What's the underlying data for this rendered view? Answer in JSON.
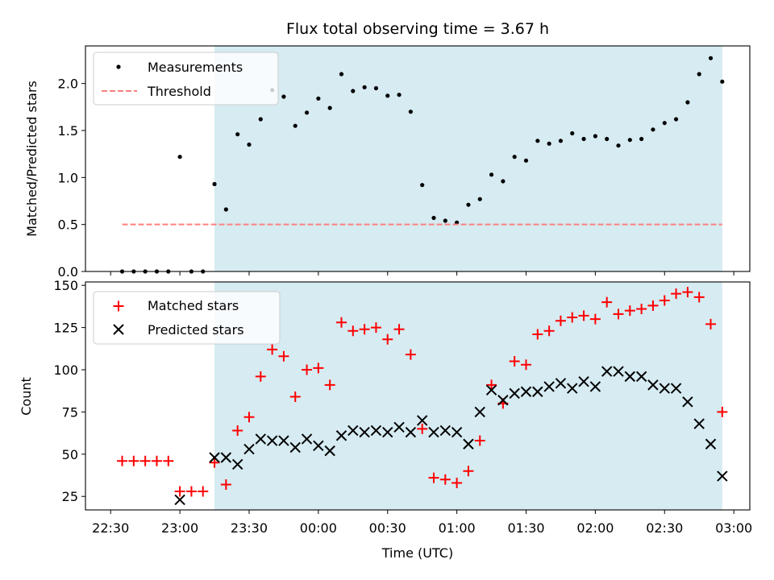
{
  "chart_data": {
    "type": "scatter",
    "title": "Flux total observing time = 3.67 h",
    "xlabel": "Time (UTC)",
    "x_ticks": [
      "22:30",
      "23:00",
      "23:30",
      "00:00",
      "00:30",
      "01:00",
      "01:30",
      "02:00",
      "02:30",
      "03:00"
    ],
    "shaded_interval": [
      "23:15",
      "02:55"
    ],
    "shade_color": "#add8e6",
    "panels": [
      {
        "ylabel": "Matched/Predicted stars",
        "ylim": [
          0,
          2.4
        ],
        "y_ticks": [
          "0.0",
          "0.5",
          "1.0",
          "1.5",
          "2.0"
        ],
        "legend_position": "top-left",
        "series": [
          {
            "name": "Measurements",
            "marker": "dot",
            "color": "#000000",
            "x": [
              "22:35",
              "22:40",
              "22:45",
              "22:50",
              "22:55",
              "23:00",
              "23:05",
              "23:10",
              "23:15",
              "23:20",
              "23:25",
              "23:30",
              "23:35",
              "23:40",
              "23:45",
              "23:50",
              "23:55",
              "00:00",
              "00:05",
              "00:10",
              "00:15",
              "00:20",
              "00:25",
              "00:30",
              "00:35",
              "00:40",
              "00:45",
              "00:50",
              "00:55",
              "01:00",
              "01:05",
              "01:10",
              "01:15",
              "01:20",
              "01:25",
              "01:30",
              "01:35",
              "01:40",
              "01:45",
              "01:50",
              "01:55",
              "02:00",
              "02:05",
              "02:10",
              "02:15",
              "02:20",
              "02:25",
              "02:30",
              "02:35",
              "02:40",
              "02:45",
              "02:50",
              "02:55"
            ],
            "y": [
              0,
              0,
              0,
              0,
              0,
              1.22,
              0,
              0,
              0.93,
              0.66,
              1.46,
              1.35,
              1.62,
              1.93,
              1.86,
              1.55,
              1.69,
              1.84,
              1.74,
              2.1,
              1.92,
              1.96,
              1.95,
              1.87,
              1.88,
              1.7,
              0.92,
              0.57,
              0.54,
              0.52,
              0.71,
              0.77,
              1.03,
              0.96,
              1.22,
              1.18,
              1.39,
              1.36,
              1.39,
              1.47,
              1.41,
              1.44,
              1.41,
              1.34,
              1.4,
              1.41,
              1.51,
              1.58,
              1.62,
              1.8,
              2.1,
              2.27,
              2.02
            ]
          },
          {
            "name": "Threshold",
            "marker": "dashed-line",
            "color": "#ff7f7f",
            "x": [
              "22:35",
              "02:55"
            ],
            "y": [
              0.5,
              0.5
            ]
          }
        ]
      },
      {
        "ylabel": "Count",
        "ylim": [
          17,
          152
        ],
        "y_ticks": [
          "25",
          "50",
          "75",
          "100",
          "125",
          "150"
        ],
        "legend_position": "top-left",
        "series": [
          {
            "name": "Matched stars",
            "marker": "plus",
            "color": "#ff0000",
            "x": [
              "22:35",
              "22:40",
              "22:45",
              "22:50",
              "22:55",
              "23:00",
              "23:05",
              "23:10",
              "23:15",
              "23:20",
              "23:25",
              "23:30",
              "23:35",
              "23:40",
              "23:45",
              "23:50",
              "23:55",
              "00:00",
              "00:05",
              "00:10",
              "00:15",
              "00:20",
              "00:25",
              "00:30",
              "00:35",
              "00:40",
              "00:45",
              "00:50",
              "00:55",
              "01:00",
              "01:05",
              "01:10",
              "01:15",
              "01:20",
              "01:25",
              "01:30",
              "01:35",
              "01:40",
              "01:45",
              "01:50",
              "01:55",
              "02:00",
              "02:05",
              "02:10",
              "02:15",
              "02:20",
              "02:25",
              "02:30",
              "02:35",
              "02:40",
              "02:45",
              "02:50",
              "02:55"
            ],
            "y": [
              46,
              46,
              46,
              46,
              46,
              28,
              28,
              28,
              45,
              32,
              64,
              72,
              96,
              112,
              108,
              84,
              100,
              101,
              91,
              128,
              123,
              124,
              125,
              118,
              124,
              109,
              65,
              36,
              35,
              33,
              40,
              58,
              91,
              80,
              105,
              103,
              121,
              123,
              129,
              131,
              132,
              130,
              140,
              133,
              135,
              136,
              138,
              141,
              145,
              146,
              143,
              127,
              75
            ]
          },
          {
            "name": "Predicted stars",
            "marker": "x",
            "color": "#000000",
            "x": [
              "23:00",
              "23:15",
              "23:20",
              "23:25",
              "23:30",
              "23:35",
              "23:40",
              "23:45",
              "23:50",
              "23:55",
              "00:00",
              "00:05",
              "00:10",
              "00:15",
              "00:20",
              "00:25",
              "00:30",
              "00:35",
              "00:40",
              "00:45",
              "00:50",
              "00:55",
              "01:00",
              "01:05",
              "01:10",
              "01:15",
              "01:20",
              "01:25",
              "01:30",
              "01:35",
              "01:40",
              "01:45",
              "01:50",
              "01:55",
              "02:00",
              "02:05",
              "02:10",
              "02:15",
              "02:20",
              "02:25",
              "02:30",
              "02:35",
              "02:40",
              "02:45",
              "02:50",
              "02:55"
            ],
            "y": [
              23,
              48,
              48,
              44,
              53,
              59,
              58,
              58,
              54,
              59,
              55,
              52,
              61,
              64,
              63,
              64,
              63,
              66,
              63,
              70,
              63,
              64,
              63,
              56,
              75,
              88,
              82,
              86,
              87,
              87,
              90,
              92,
              89,
              93,
              90,
              99,
              99,
              96,
              96,
              91,
              89,
              89,
              81,
              68,
              56,
              37
            ]
          }
        ]
      }
    ]
  }
}
